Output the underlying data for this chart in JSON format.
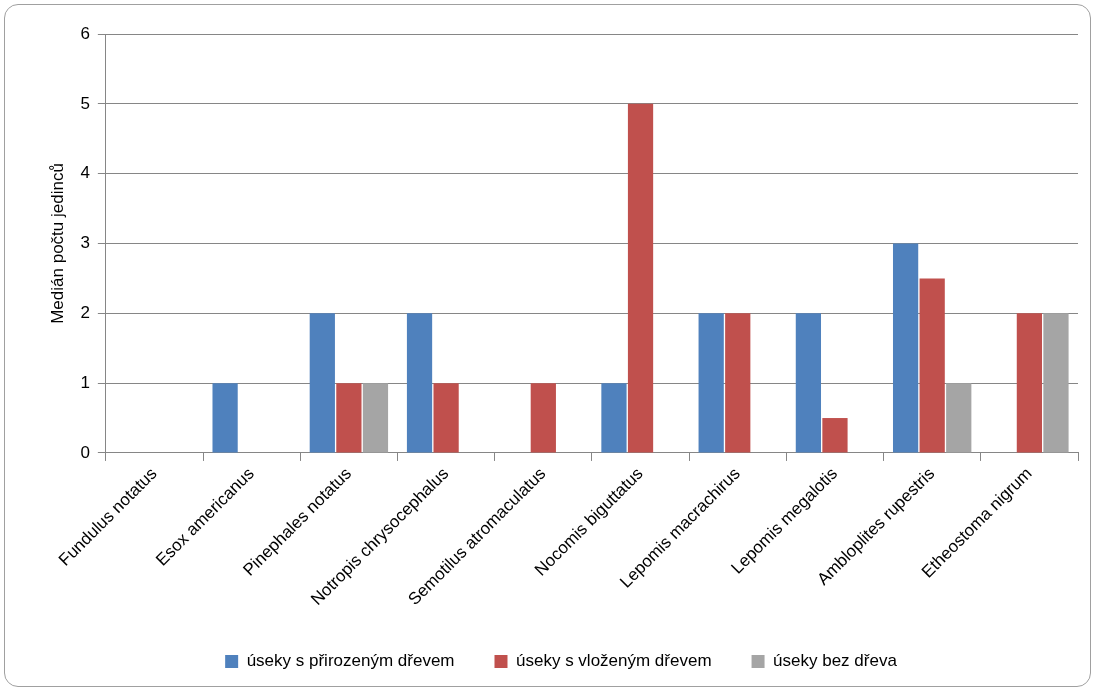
{
  "chart_data": {
    "type": "bar",
    "ylabel": "Medián počtu jedinců",
    "categories": [
      "Fundulus notatus",
      "Esox americanus",
      "Pinephales notatus",
      "Notropis chrysocephalus",
      "Semotilus atromaculatus",
      "Nocomis biguttatus",
      "Lepomis macrachirus",
      "Lepomis megalotis",
      "Ambloplites rupestris",
      "Etheostoma nigrum"
    ],
    "series": [
      {
        "name": "úseky s přirozeným dřevem",
        "color": "#4f81bd",
        "values": [
          0,
          1,
          2,
          2,
          0,
          1,
          2,
          2,
          3,
          0
        ]
      },
      {
        "name": "úseky s vloženým dřevem",
        "color": "#c0504d",
        "values": [
          0,
          0,
          1,
          1,
          1,
          5,
          2,
          0.5,
          2.5,
          2
        ]
      },
      {
        "name": "úseky bez dřeva",
        "color": "#a5a5a5",
        "values": [
          0,
          0,
          1,
          0,
          0,
          0,
          0,
          0,
          1,
          2
        ]
      }
    ],
    "ylim": [
      0,
      6
    ],
    "yticks": [
      0,
      1,
      2,
      3,
      4,
      5,
      6
    ],
    "grid": "y",
    "legend": "bottom"
  }
}
